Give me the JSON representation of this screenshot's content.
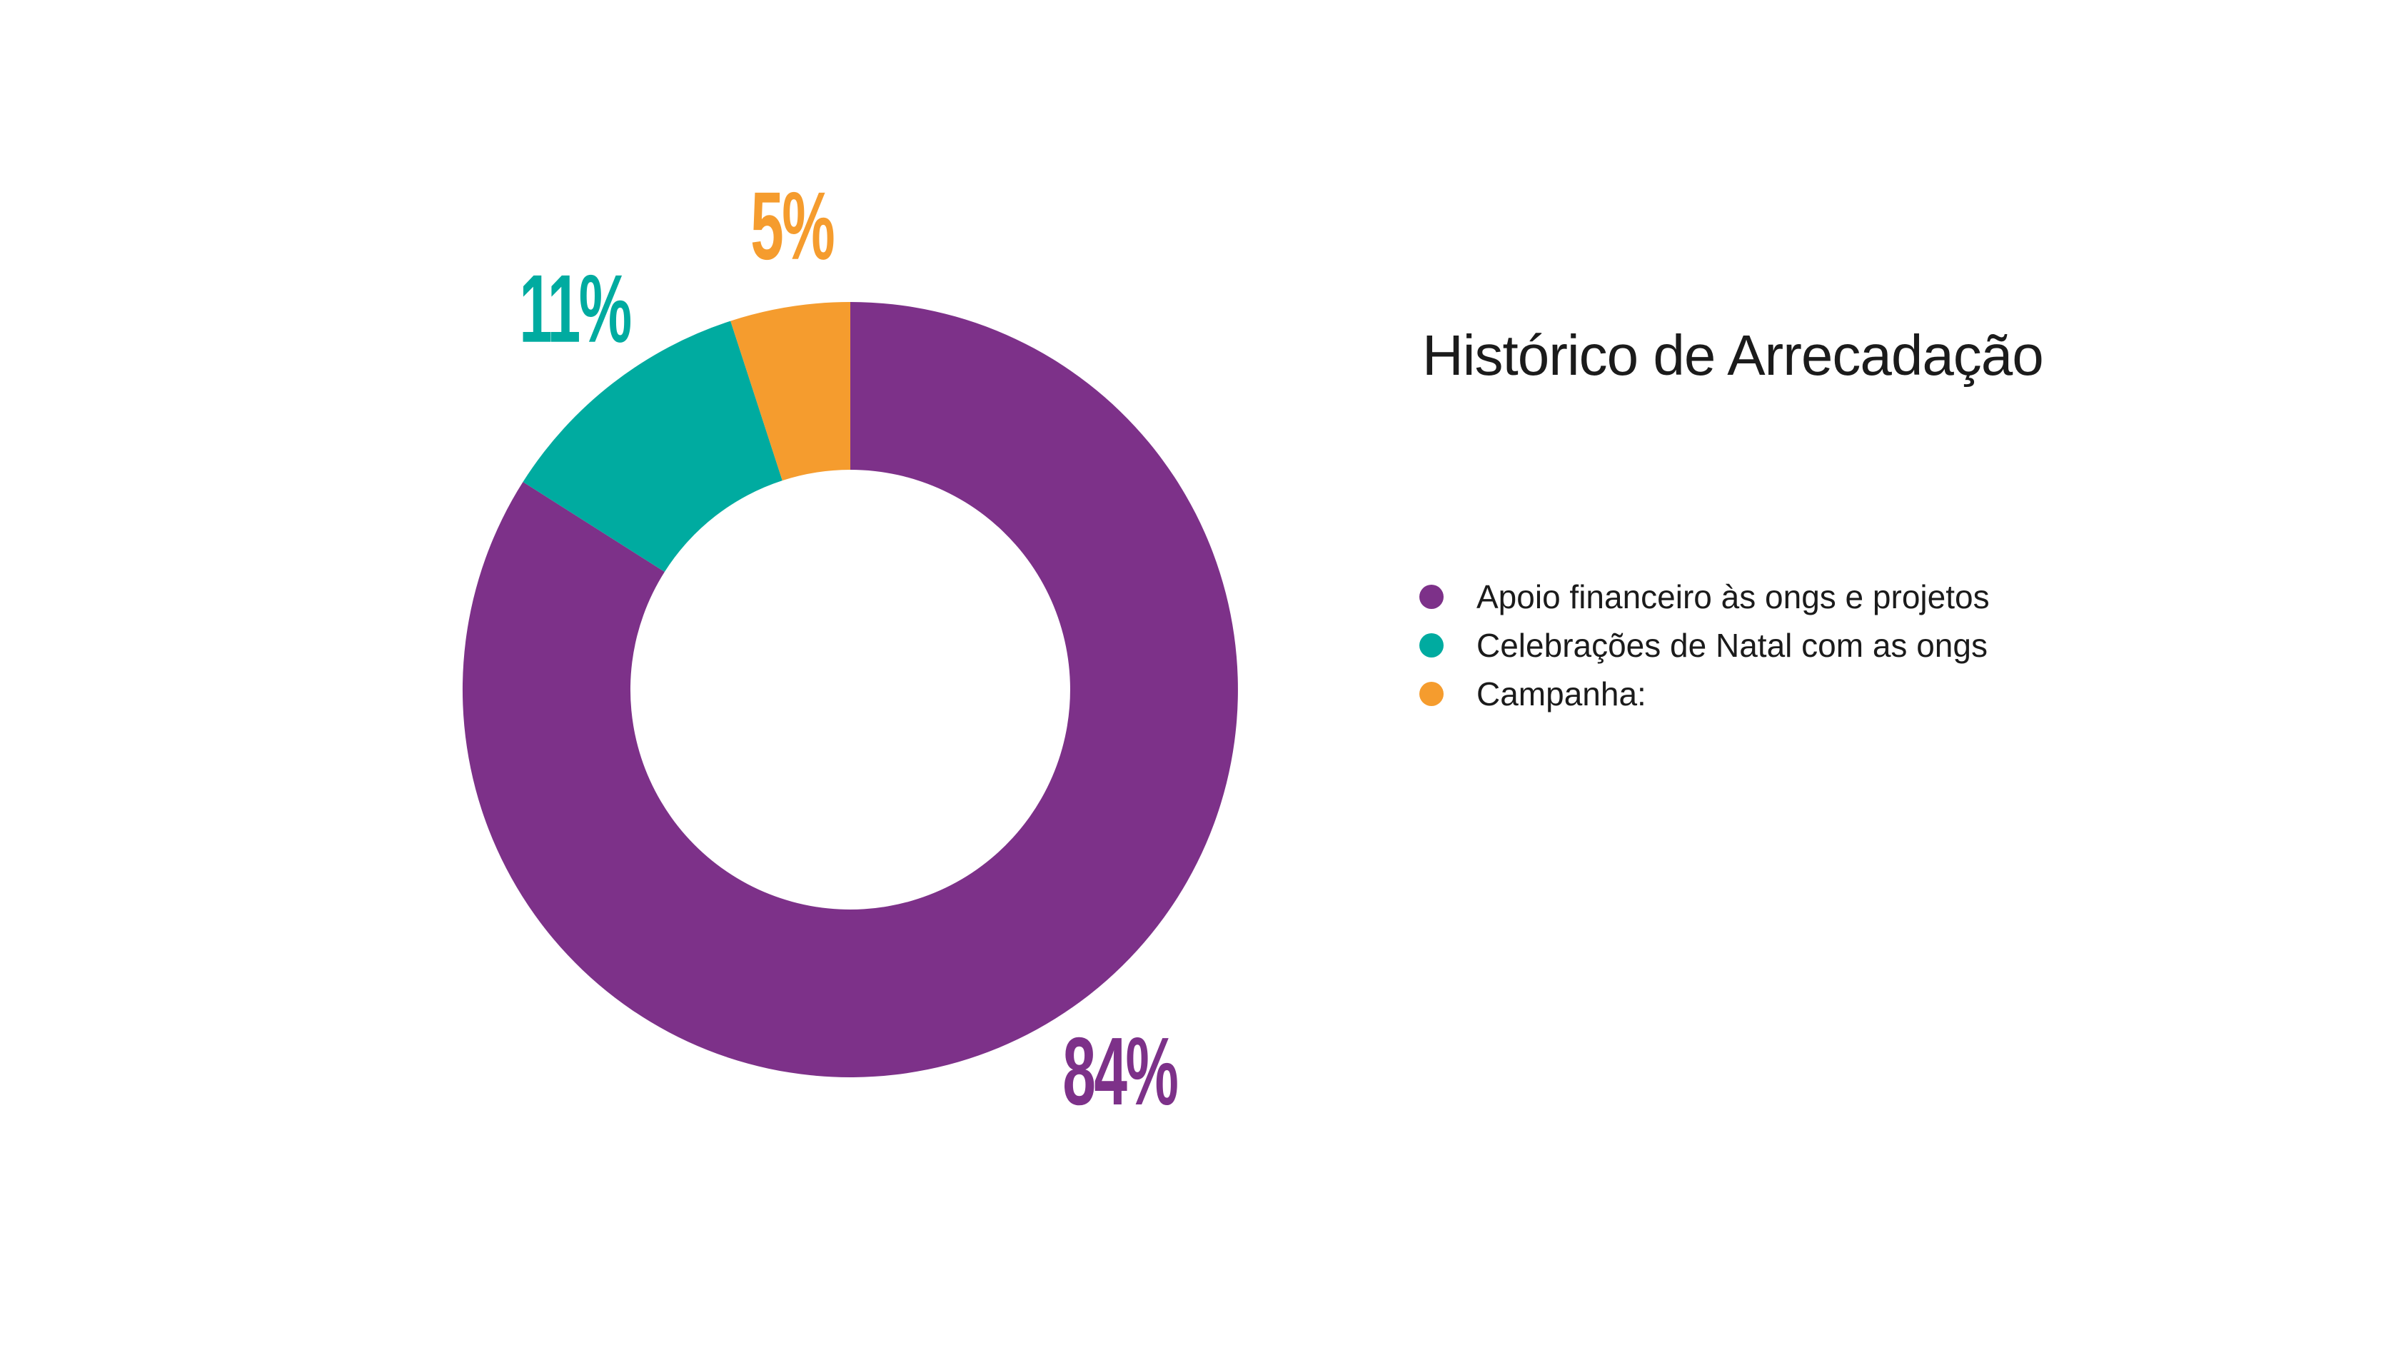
{
  "chart_data": {
    "type": "pie",
    "subtype": "donut",
    "title": "Histórico de Arrecadação",
    "legend_position": "right",
    "direction": "clockwise",
    "start_angle": "top",
    "grid": false,
    "slices": [
      {
        "label": "Apoio financeiro às ongs e projetos",
        "value": 84,
        "display_value": "84%",
        "color": "#7D3189"
      },
      {
        "label": "Celebrações de Natal com as ongs",
        "value": 11,
        "display_value": "11%",
        "color": "#00ABA0"
      },
      {
        "label": "Campanha:",
        "value": 5,
        "display_value": "5%",
        "color": "#F59C2E"
      }
    ]
  },
  "colors": {
    "background": "#FFFFFF",
    "title_text": "#1B1B1B",
    "legend_text": "#1B1B1B"
  }
}
